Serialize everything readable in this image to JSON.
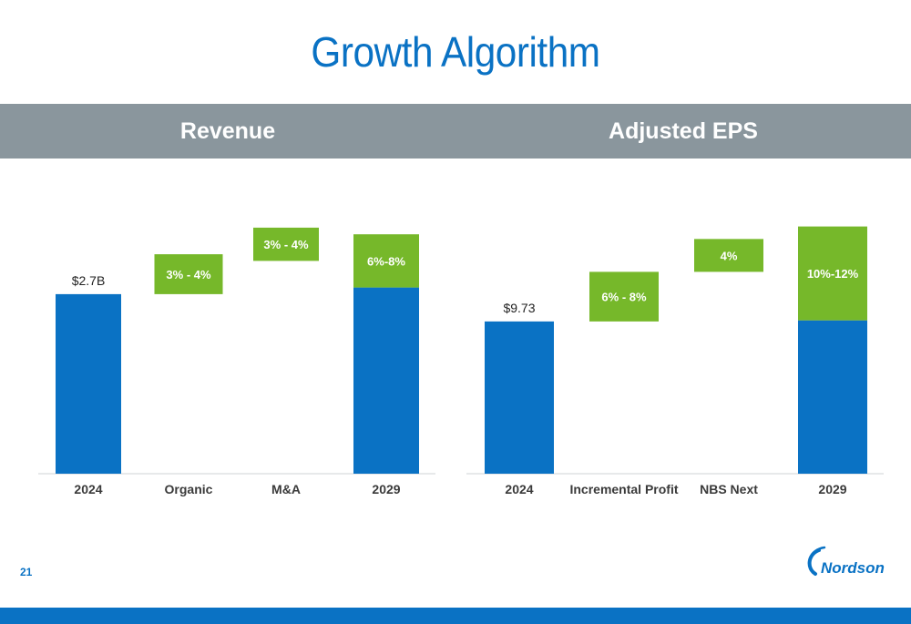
{
  "title": "Growth Algorithm",
  "page_number": "21",
  "logo_text": "Nordson",
  "colors": {
    "blue": "#0a72c4",
    "green": "#76b82a",
    "band": "#8a969d"
  },
  "chart_data": [
    {
      "type": "bar",
      "subtype": "waterfall",
      "title": "Revenue",
      "categories": [
        "2024",
        "Organic",
        "M&A",
        "2029"
      ],
      "ylim": [
        0,
        4
      ],
      "bars": [
        {
          "category": "2024",
          "kind": "base",
          "start": 0,
          "end": 2.7,
          "label": "$2.7B",
          "label_position": "above"
        },
        {
          "category": "Organic",
          "kind": "increment",
          "start": 2.7,
          "end": 3.3,
          "label": "3% - 4%",
          "label_position": "inside"
        },
        {
          "category": "M&A",
          "kind": "increment",
          "start": 3.2,
          "end": 3.7,
          "label": "3% - 4%",
          "label_position": "inside"
        },
        {
          "category": "2029",
          "kind": "base",
          "start": 0,
          "end": 2.8,
          "label": "",
          "label_position": "none"
        },
        {
          "category": "2029",
          "kind": "increment",
          "start": 2.8,
          "end": 3.6,
          "label": "6%-8%",
          "label_position": "inside"
        }
      ]
    },
    {
      "type": "bar",
      "subtype": "waterfall",
      "title": "Adjusted EPS",
      "categories": [
        "2024",
        "Incremental Profit",
        "NBS Next",
        "2029"
      ],
      "ylim": [
        0,
        17
      ],
      "bars": [
        {
          "category": "2024",
          "kind": "base",
          "start": 0,
          "end": 9.73,
          "label": "$9.73",
          "label_position": "above"
        },
        {
          "category": "Incremental Profit",
          "kind": "increment",
          "start": 9.73,
          "end": 12.9,
          "label": "6% - 8%",
          "label_position": "inside"
        },
        {
          "category": "NBS Next",
          "kind": "increment",
          "start": 12.9,
          "end": 15.0,
          "label": "4%",
          "label_position": "inside"
        },
        {
          "category": "2029",
          "kind": "base",
          "start": 0,
          "end": 9.8,
          "label": "",
          "label_position": "none"
        },
        {
          "category": "2029",
          "kind": "increment",
          "start": 9.8,
          "end": 15.8,
          "label": "10%-12%",
          "label_position": "inside"
        }
      ]
    }
  ]
}
